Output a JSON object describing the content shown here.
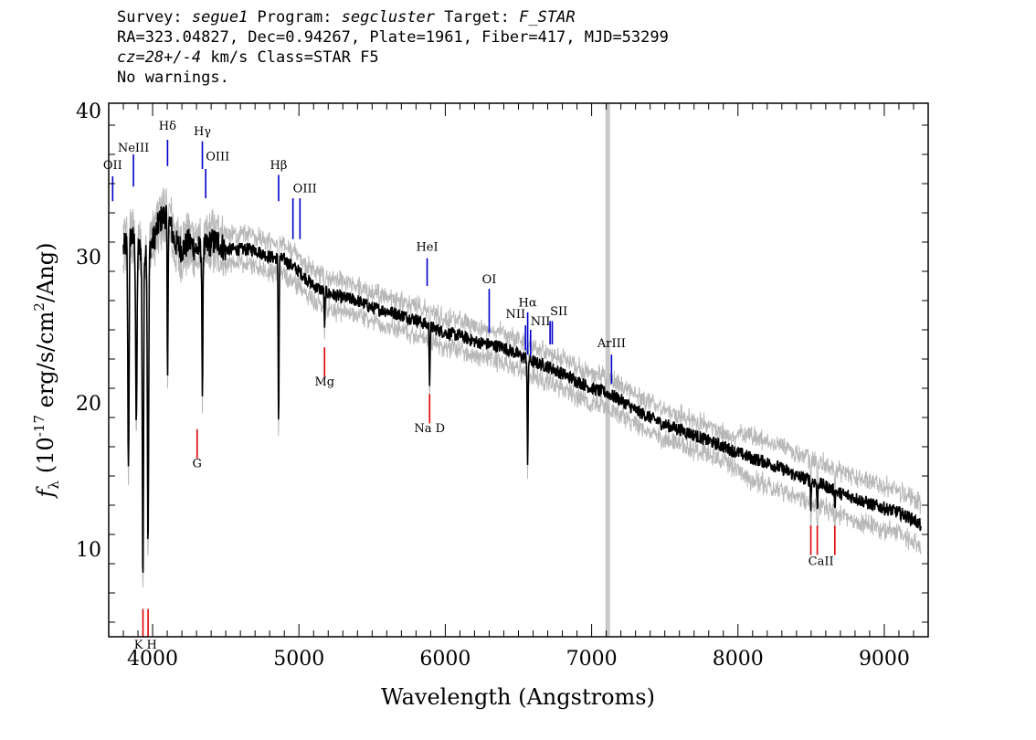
{
  "header": {
    "survey_label": "Survey: ",
    "survey": "segue1",
    "program_label": " Program: ",
    "program": "segcluster",
    "target_label": " Target: ",
    "target": "F_STAR",
    "line2": "RA=323.04827, Dec=0.94267, Plate=1961, Fiber=417, MJD=53299",
    "cz": "cz=28+/-4",
    "line3_rest": " km/s Class=STAR F5",
    "line4": "No warnings."
  },
  "chart_data": {
    "type": "line",
    "xlabel": "Wavelength (Angstroms)",
    "ylabel_symbol": "f",
    "ylabel_sub": "λ",
    "ylabel_text": "(10",
    "ylabel_exp": "-17",
    "ylabel_rest": " erg/s/cm",
    "ylabel_exp2": "2",
    "ylabel_end": "/Ang)",
    "xlim": [
      3700,
      9300
    ],
    "ylim": [
      4,
      40.5
    ],
    "xticks": [
      "4000",
      "5000",
      "6000",
      "7000",
      "8000",
      "9000"
    ],
    "yticks": [
      "10",
      "20",
      "30",
      "40"
    ],
    "grid": false,
    "masked_wavelength": 7110,
    "series": [
      {
        "x": [
          3800,
          3850,
          3900,
          3950,
          4000,
          4050,
          4100,
          4150,
          4200,
          4250,
          4300,
          4350,
          4400,
          4450,
          4500,
          4550,
          4600,
          4650,
          4700,
          4750,
          4800,
          4900,
          5000,
          5100,
          5200,
          5300,
          5400,
          5500,
          5600,
          5700,
          5800,
          5900,
          6000,
          6100,
          6200,
          6300,
          6400,
          6500,
          6600,
          6700,
          6800,
          6900,
          7000,
          7100,
          7200,
          7300,
          7400,
          7500,
          7600,
          7700,
          7800,
          7900,
          8000,
          8100,
          8200,
          8300,
          8400,
          8500,
          8600,
          8700,
          8800,
          8900,
          9000,
          9100,
          9200,
          9250
        ],
        "values": [
          30.5,
          31.5,
          30.5,
          30.5,
          31.0,
          32.5,
          33.0,
          31.0,
          30.5,
          31.0,
          30.5,
          30.5,
          31.0,
          31.0,
          30.5,
          30.5,
          30.5,
          30.5,
          30.5,
          30.2,
          30.0,
          29.8,
          29.0,
          28.0,
          27.5,
          27.2,
          27.0,
          26.5,
          26.3,
          26.0,
          25.7,
          25.2,
          24.8,
          24.6,
          24.2,
          24.0,
          23.8,
          23.3,
          22.8,
          22.5,
          22.0,
          21.5,
          21.0,
          20.7,
          20.2,
          19.5,
          19.0,
          18.5,
          18.2,
          17.8,
          17.4,
          17.0,
          16.6,
          16.2,
          15.9,
          15.5,
          15.0,
          14.7,
          14.3,
          13.8,
          13.5,
          13.1,
          12.8,
          12.5,
          12.0,
          11.6
        ]
      }
    ],
    "absorption_features": [
      {
        "x": 3835,
        "depth": 15.5
      },
      {
        "x": 3889,
        "depth": 18.0
      },
      {
        "x": 3934,
        "depth": 8.0
      },
      {
        "x": 3969,
        "depth": 10.0
      },
      {
        "x": 4102,
        "depth": 21.0
      },
      {
        "x": 4340,
        "depth": 19.5
      },
      {
        "x": 4861,
        "depth": 18.5
      },
      {
        "x": 5175,
        "depth": 25.0
      },
      {
        "x": 5893,
        "depth": 21.5
      },
      {
        "x": 6563,
        "depth": 15.5
      },
      {
        "x": 8498,
        "depth": 13.0
      },
      {
        "x": 8542,
        "depth": 12.5
      },
      {
        "x": 8662,
        "depth": 13.0
      }
    ],
    "emission_lines": [
      {
        "label": "OII",
        "wave": 3727,
        "y_top": 35.5,
        "y_bottom": 33.8,
        "label_y": 36.0,
        "align": "middle"
      },
      {
        "label": "NeIII",
        "wave": 3869,
        "y_top": 37.0,
        "y_bottom": 34.8,
        "label_y": 37.2,
        "align": "middle"
      },
      {
        "label": "Hδ",
        "wave": 4102,
        "y_top": 38.0,
        "y_bottom": 36.2,
        "label_y": 38.7,
        "align": "middle"
      },
      {
        "label": "Hγ",
        "wave": 4340,
        "y_top": 37.9,
        "y_bottom": 36.0,
        "label_y": 38.3,
        "align": "middle"
      },
      {
        "label": "OIII",
        "wave": 4363,
        "y_top": 36.0,
        "y_bottom": 34.0,
        "label_y": 36.6,
        "align": "start"
      },
      {
        "label": "Hβ",
        "wave": 4861,
        "y_top": 35.6,
        "y_bottom": 33.8,
        "label_y": 36.0,
        "align": "middle"
      },
      {
        "label": "OIII",
        "wave": 4959,
        "y_top": 34.0,
        "y_bottom": 31.2,
        "label_y": 34.4,
        "align": "start"
      },
      {
        "label": "",
        "wave": 5007,
        "y_top": 34.0,
        "y_bottom": 31.2,
        "label_y": 34.4,
        "align": "start"
      },
      {
        "label": "HeI",
        "wave": 5876,
        "y_top": 29.9,
        "y_bottom": 28.0,
        "label_y": 30.4,
        "align": "middle"
      },
      {
        "label": "OI",
        "wave": 6300,
        "y_top": 27.8,
        "y_bottom": 24.8,
        "label_y": 28.2,
        "align": "middle"
      },
      {
        "label": "NII",
        "wave": 6548,
        "y_top": 25.3,
        "y_bottom": 23.6,
        "label_y": 25.8,
        "align": "end"
      },
      {
        "label": "Hα",
        "wave": 6563,
        "y_top": 26.2,
        "y_bottom": 23.3,
        "label_y": 26.6,
        "align": "middle"
      },
      {
        "label": "NII",
        "wave": 6583,
        "y_top": 25.0,
        "y_bottom": 23.2,
        "label_y": 25.3,
        "align": "start"
      },
      {
        "label": "SII",
        "wave": 6716,
        "y_top": 25.6,
        "y_bottom": 24.0,
        "label_y": 26.0,
        "align": "start"
      },
      {
        "label": "",
        "wave": 6731,
        "y_top": 25.6,
        "y_bottom": 24.0,
        "label_y": 26.0,
        "align": "start"
      },
      {
        "label": "ArIII",
        "wave": 7136,
        "y_top": 23.3,
        "y_bottom": 21.3,
        "label_y": 23.8,
        "align": "middle"
      }
    ],
    "absorption_lines": [
      {
        "label": "K H",
        "waves": [
          3934,
          3969
        ],
        "y_top": 5.9,
        "y_bottom": 4.0,
        "label_y": 3.2
      },
      {
        "label": "G",
        "waves": [
          4304
        ],
        "y_top": 18.2,
        "y_bottom": 16.2,
        "label_y": 15.6
      },
      {
        "label": "Mg",
        "waves": [
          5175
        ],
        "y_top": 23.8,
        "y_bottom": 21.8,
        "label_y": 21.2
      },
      {
        "label": "Na D",
        "waves": [
          5893
        ],
        "y_top": 20.6,
        "y_bottom": 18.6,
        "label_y": 18.0
      },
      {
        "label": "CaII",
        "waves": [
          8498,
          8542,
          8662
        ],
        "y_top": 11.6,
        "y_bottom": 9.6,
        "label_y": 8.9
      }
    ]
  }
}
